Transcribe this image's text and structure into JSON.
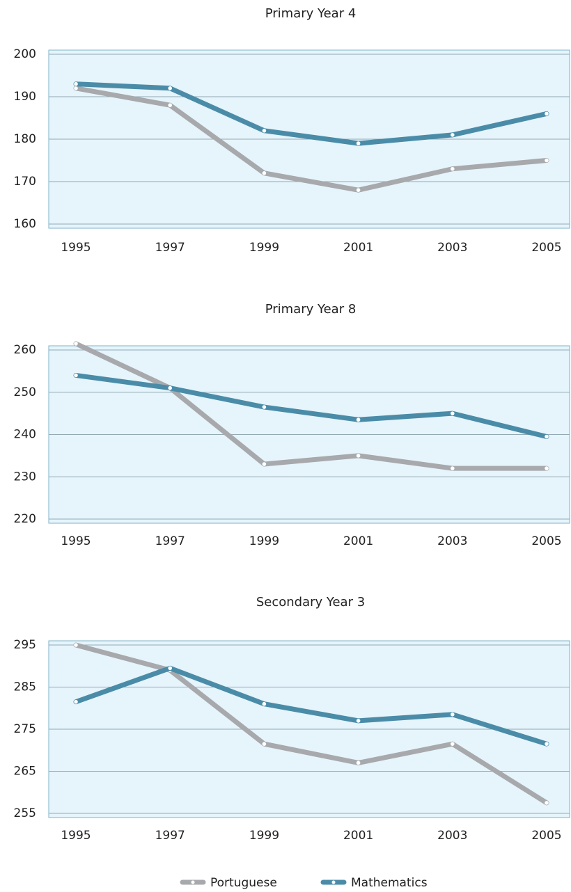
{
  "chart_data": [
    {
      "type": "line",
      "title": "Primary Year 4",
      "x": [
        1995,
        1997,
        1999,
        2001,
        2003,
        2005
      ],
      "series": [
        {
          "name": "Portuguese",
          "color": "#a7a9ac",
          "values": [
            192,
            188,
            172,
            168,
            173,
            175
          ]
        },
        {
          "name": "Mathematics",
          "color": "#4a8ca8",
          "values": [
            193,
            192,
            182,
            179,
            181,
            186
          ]
        }
      ],
      "ylim": [
        160,
        200
      ],
      "yticks": [
        160,
        170,
        180,
        190,
        200
      ],
      "grid": true
    },
    {
      "type": "line",
      "title": "Primary Year 8",
      "x": [
        1995,
        1997,
        1999,
        2001,
        2003,
        2005
      ],
      "series": [
        {
          "name": "Portuguese",
          "color": "#a7a9ac",
          "values": [
            261.5,
            251,
            233,
            235,
            232,
            232
          ]
        },
        {
          "name": "Mathematics",
          "color": "#4a8ca8",
          "values": [
            254,
            251,
            246.5,
            243.5,
            245,
            239.5
          ]
        }
      ],
      "ylim": [
        220,
        260
      ],
      "yticks": [
        220,
        230,
        240,
        250,
        260
      ],
      "grid": true
    },
    {
      "type": "line",
      "title": "Secondary Year 3",
      "x": [
        1995,
        1997,
        1999,
        2001,
        2003,
        2005
      ],
      "series": [
        {
          "name": "Portuguese",
          "color": "#a7a9ac",
          "values": [
            295,
            289,
            271.5,
            267,
            271.5,
            257.5
          ]
        },
        {
          "name": "Mathematics",
          "color": "#4a8ca8",
          "values": [
            281.5,
            289.5,
            281,
            277,
            278.5,
            271.5
          ]
        }
      ],
      "ylim": [
        255,
        295
      ],
      "yticks": [
        255,
        265,
        275,
        285,
        295
      ],
      "grid": true
    }
  ]
}
